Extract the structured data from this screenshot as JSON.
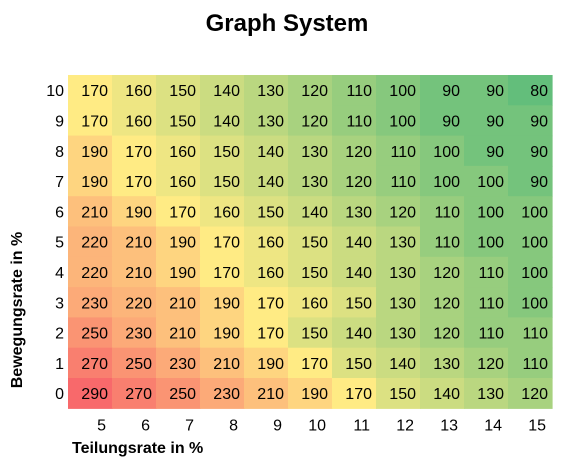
{
  "chart_data": {
    "type": "heatmap",
    "title": "Graph System",
    "xlabel": "Teilungsrate in %",
    "ylabel": "Bewegungsrate in %",
    "x": [
      "5",
      "6",
      "7",
      "8",
      "9",
      "10",
      "11",
      "12",
      "13",
      "14",
      "15"
    ],
    "y": [
      "10",
      "9",
      "8",
      "7",
      "6",
      "5",
      "4",
      "3",
      "2",
      "1",
      "0"
    ],
    "values": [
      [
        170,
        160,
        150,
        140,
        130,
        120,
        110,
        100,
        90,
        90,
        80
      ],
      [
        170,
        160,
        150,
        140,
        130,
        120,
        110,
        100,
        90,
        90,
        90
      ],
      [
        190,
        170,
        160,
        150,
        140,
        130,
        120,
        110,
        100,
        90,
        90
      ],
      [
        190,
        170,
        160,
        150,
        140,
        130,
        120,
        110,
        100,
        100,
        90
      ],
      [
        210,
        190,
        170,
        160,
        150,
        140,
        130,
        120,
        110,
        100,
        100
      ],
      [
        220,
        210,
        190,
        170,
        160,
        150,
        140,
        130,
        110,
        100,
        100
      ],
      [
        220,
        210,
        190,
        170,
        160,
        150,
        140,
        130,
        120,
        110,
        100
      ],
      [
        230,
        220,
        210,
        190,
        170,
        160,
        150,
        130,
        120,
        110,
        100
      ],
      [
        250,
        230,
        210,
        190,
        170,
        150,
        140,
        130,
        120,
        110,
        110
      ],
      [
        270,
        250,
        230,
        210,
        190,
        170,
        150,
        140,
        130,
        120,
        110
      ],
      [
        290,
        270,
        250,
        230,
        210,
        190,
        170,
        150,
        140,
        130,
        120
      ]
    ],
    "color_scale": {
      "min": 80,
      "mid": 170,
      "max": 290,
      "min_color": "#63BE7B",
      "mid_color": "#FFEB84",
      "max_color": "#F8696B"
    },
    "grid": false,
    "legend": "none"
  }
}
